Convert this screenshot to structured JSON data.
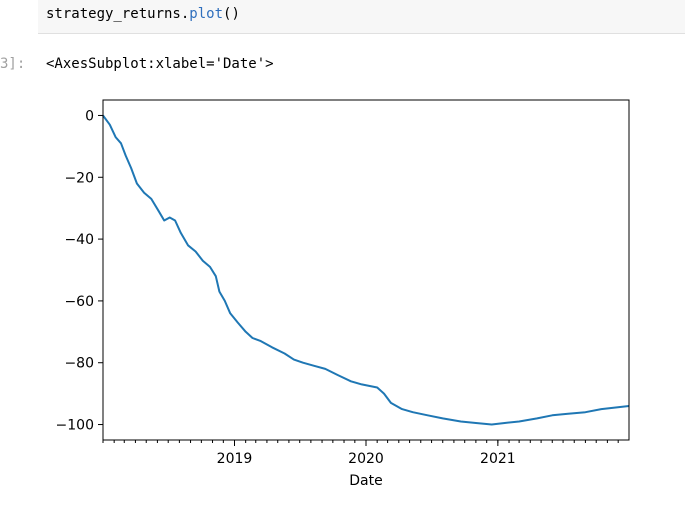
{
  "code_cell": {
    "object": "strategy_returns",
    "dot": ".",
    "method": "plot",
    "parens": "()"
  },
  "output": {
    "prompt": "3]:",
    "repr": "<AxesSubplot:xlabel='Date'>"
  },
  "chart_data": {
    "type": "line",
    "xlabel": "Date",
    "ylabel": "",
    "x_range": [
      "2018-01-01",
      "2021-12-31"
    ],
    "ylim": [
      -105,
      5
    ],
    "y_ticks": [
      0,
      -20,
      -40,
      -60,
      -80,
      -100
    ],
    "y_tick_labels": [
      "0",
      "−20",
      "−40",
      "−60",
      "−80",
      "−100"
    ],
    "x_ticks": [
      "2019-01-01",
      "2020-01-01",
      "2021-01-01"
    ],
    "x_tick_labels": [
      "2019",
      "2020",
      "2021"
    ],
    "line_color": "#1f77b4",
    "series": [
      {
        "points": [
          [
            "2018-01-01",
            0
          ],
          [
            "2018-01-20",
            -3
          ],
          [
            "2018-02-05",
            -7
          ],
          [
            "2018-02-20",
            -9
          ],
          [
            "2018-03-05",
            -13
          ],
          [
            "2018-03-20",
            -17
          ],
          [
            "2018-04-05",
            -22
          ],
          [
            "2018-04-25",
            -25
          ],
          [
            "2018-05-15",
            -27
          ],
          [
            "2018-06-05",
            -31
          ],
          [
            "2018-06-20",
            -34
          ],
          [
            "2018-07-05",
            -33
          ],
          [
            "2018-07-20",
            -34
          ],
          [
            "2018-08-05",
            -38
          ],
          [
            "2018-08-25",
            -42
          ],
          [
            "2018-09-15",
            -44
          ],
          [
            "2018-10-05",
            -47
          ],
          [
            "2018-10-25",
            -49
          ],
          [
            "2018-11-10",
            -52
          ],
          [
            "2018-11-20",
            -57
          ],
          [
            "2018-12-05",
            -60
          ],
          [
            "2018-12-20",
            -64
          ],
          [
            "2019-01-10",
            -67
          ],
          [
            "2019-02-01",
            -70
          ],
          [
            "2019-02-20",
            -72
          ],
          [
            "2019-03-15",
            -73
          ],
          [
            "2019-04-15",
            -75
          ],
          [
            "2019-05-20",
            -77
          ],
          [
            "2019-06-15",
            -79
          ],
          [
            "2019-07-10",
            -80
          ],
          [
            "2019-08-10",
            -81
          ],
          [
            "2019-09-10",
            -82
          ],
          [
            "2019-10-15",
            -84
          ],
          [
            "2019-11-20",
            -86
          ],
          [
            "2019-12-20",
            -87
          ],
          [
            "2020-02-01",
            -88
          ],
          [
            "2020-02-20",
            -90
          ],
          [
            "2020-03-10",
            -93
          ],
          [
            "2020-04-10",
            -95
          ],
          [
            "2020-05-10",
            -96
          ],
          [
            "2020-06-20",
            -97
          ],
          [
            "2020-08-01",
            -98
          ],
          [
            "2020-09-20",
            -99
          ],
          [
            "2020-11-01",
            -99.5
          ],
          [
            "2020-12-15",
            -100
          ],
          [
            "2021-01-20",
            -99.5
          ],
          [
            "2021-03-01",
            -99
          ],
          [
            "2021-04-20",
            -98
          ],
          [
            "2021-06-01",
            -97
          ],
          [
            "2021-07-15",
            -96.5
          ],
          [
            "2021-09-01",
            -96
          ],
          [
            "2021-10-15",
            -95
          ],
          [
            "2021-12-31",
            -94
          ]
        ]
      }
    ]
  }
}
